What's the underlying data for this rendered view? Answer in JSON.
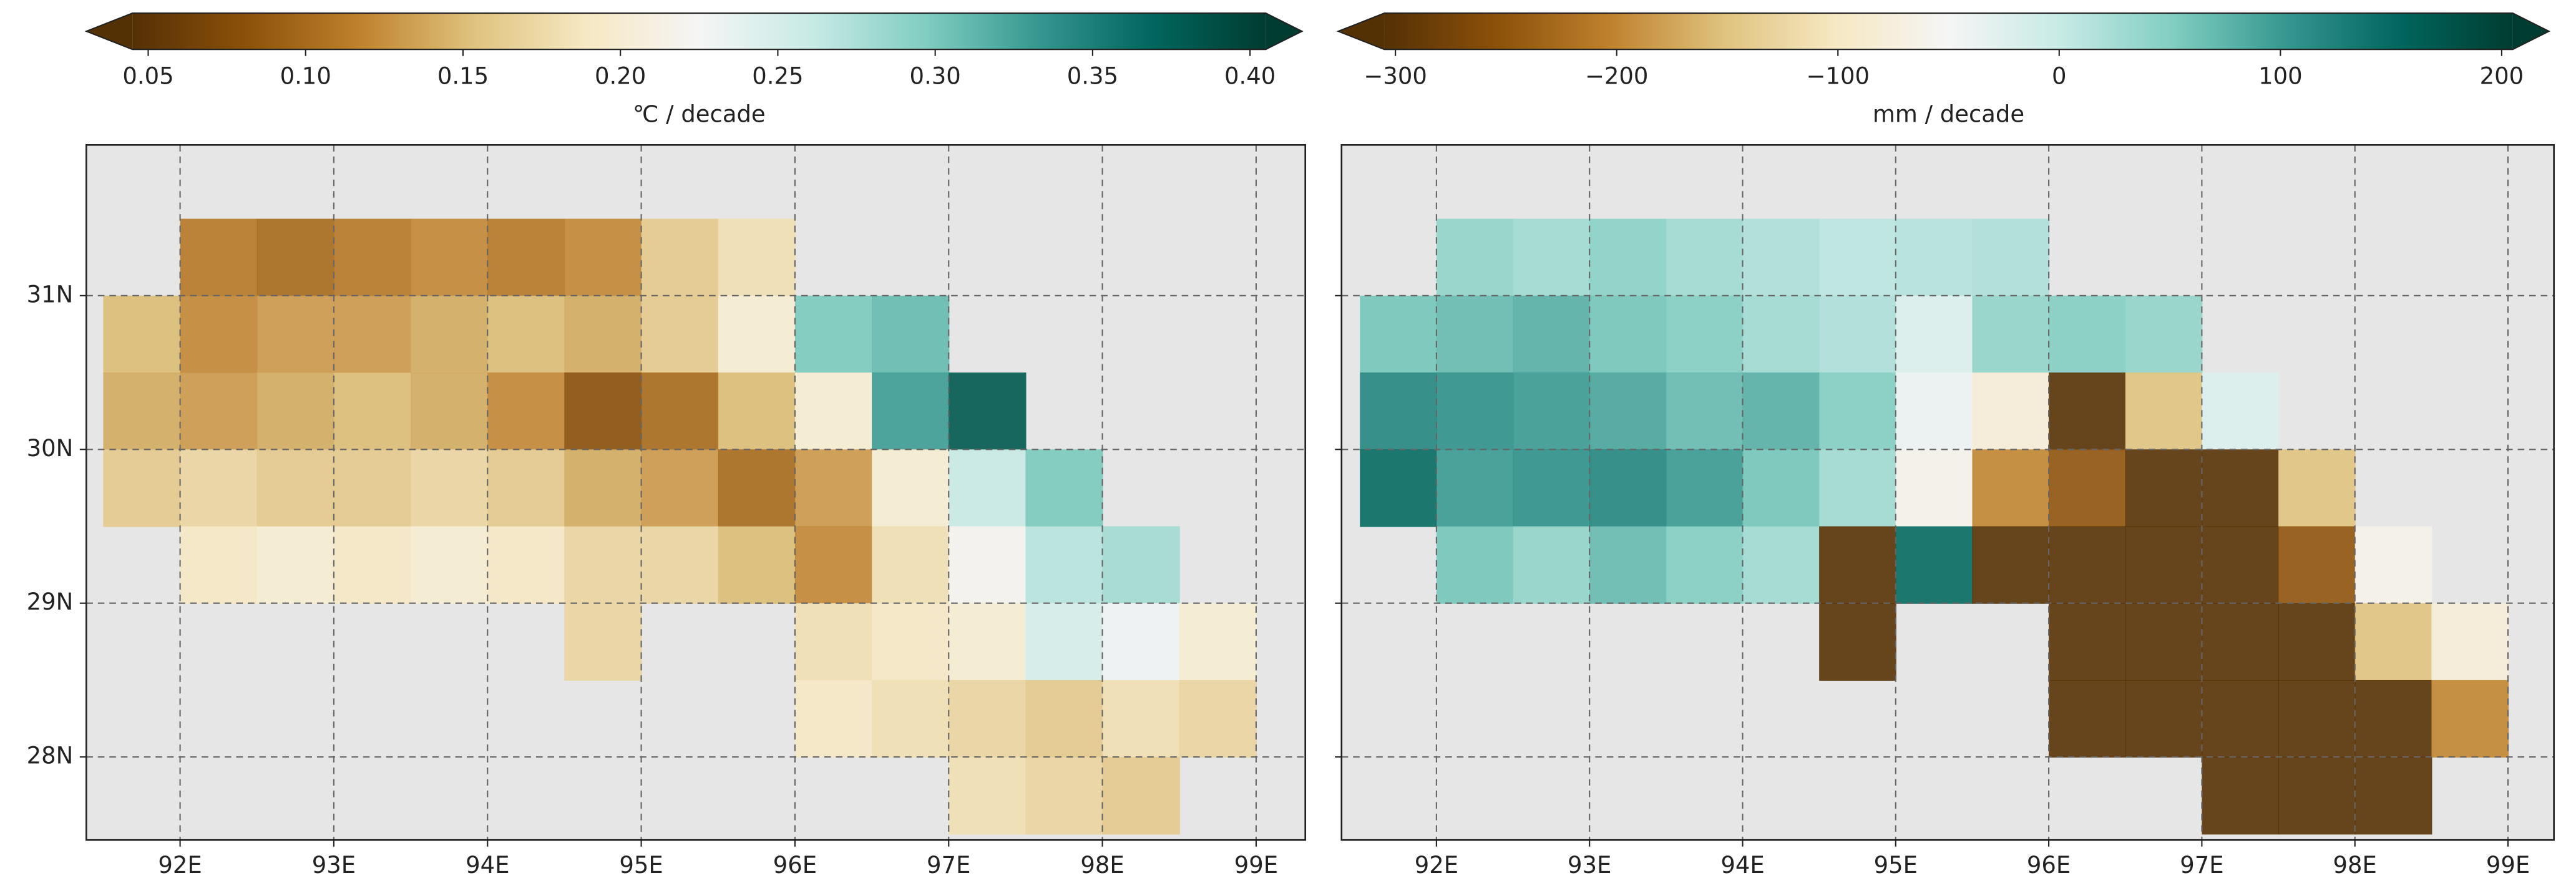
{
  "chart_data": [
    {
      "type": "map",
      "colorbar_label": "℃ / decade",
      "clim": [
        0.045,
        0.405
      ],
      "colorbar_ticks": [
        0.05,
        {
          "value": 0.1,
          "label": "0.10"
        },
        0.15,
        {
          "value": 0.2,
          "label": "0.20"
        },
        0.25,
        {
          "value": 0.3,
          "label": "0.30"
        },
        0.35,
        {
          "value": 0.4,
          "label": "0.40"
        }
      ],
      "colors": [
        "#543005",
        "#8c510a",
        "#bf812d",
        "#dfc27d",
        "#f6e8c3",
        "#f5f5f5",
        "#c7eae5",
        "#80cdc1",
        "#35978f",
        "#01665e",
        "#003c30"
      ],
      "xlim": [
        91.39,
        99.32
      ],
      "ylim": [
        27.46,
        31.98
      ],
      "xticks": [
        {
          "value": 92,
          "label": "92E"
        },
        {
          "value": 93,
          "label": "93E"
        },
        {
          "value": 94,
          "label": "94E"
        },
        {
          "value": 95,
          "label": "95E"
        },
        {
          "value": 96,
          "label": "96E"
        },
        {
          "value": 97,
          "label": "97E"
        },
        {
          "value": 98,
          "label": "98E"
        },
        {
          "value": 99,
          "label": "99E"
        }
      ],
      "yticks": [
        {
          "value": 28,
          "label": "28N"
        },
        {
          "value": 29,
          "label": "29N"
        },
        {
          "value": 30,
          "label": "30N"
        },
        {
          "value": 31,
          "label": "31N"
        }
      ],
      "grid": true,
      "x": [
        91.75,
        92.25,
        92.75,
        93.25,
        93.75,
        94.25,
        94.75,
        95.25,
        95.75,
        96.25,
        96.75,
        97.25,
        97.75,
        98.25,
        98.75
      ],
      "y": [
        31.75,
        31.25,
        30.75,
        30.25,
        29.75,
        29.25,
        28.75,
        28.25,
        27.75
      ],
      "values": [
        [
          null,
          null,
          null,
          null,
          null,
          null,
          null,
          null,
          null,
          null,
          null,
          null,
          null,
          null,
          null
        ],
        [
          null,
          0.11,
          0.1,
          0.11,
          0.12,
          0.11,
          0.12,
          0.16,
          0.18,
          null,
          null,
          null,
          null,
          null,
          null
        ],
        [
          0.15,
          0.12,
          0.13,
          0.13,
          0.14,
          0.15,
          0.14,
          0.16,
          0.2,
          0.3,
          0.31,
          null,
          null,
          null,
          null
        ],
        [
          0.14,
          0.13,
          0.14,
          0.15,
          0.14,
          0.12,
          0.08,
          0.1,
          0.15,
          0.2,
          0.33,
          0.38,
          null,
          null,
          null
        ],
        [
          0.16,
          0.17,
          0.16,
          0.16,
          0.17,
          0.16,
          0.14,
          0.13,
          0.1,
          0.13,
          0.2,
          0.26,
          0.3,
          null,
          null
        ],
        [
          null,
          0.19,
          0.2,
          0.19,
          0.2,
          0.19,
          0.17,
          0.17,
          0.15,
          0.12,
          0.18,
          0.22,
          0.27,
          0.28,
          null
        ],
        [
          null,
          null,
          null,
          null,
          null,
          null,
          0.17,
          null,
          null,
          0.18,
          0.19,
          0.2,
          0.25,
          0.23,
          0.2
        ],
        [
          null,
          null,
          null,
          null,
          null,
          null,
          null,
          null,
          null,
          0.19,
          0.18,
          0.17,
          0.16,
          0.18,
          0.17
        ],
        [
          null,
          null,
          null,
          null,
          null,
          null,
          null,
          null,
          null,
          null,
          null,
          0.18,
          0.17,
          0.16,
          null
        ]
      ]
    },
    {
      "type": "map",
      "colorbar_label": "mm / decade",
      "clim": [
        -305,
        205
      ],
      "colorbar_ticks": [
        {
          "value": -300,
          "label": "−300"
        },
        {
          "value": -200,
          "label": "−200"
        },
        {
          "value": -100,
          "label": "−100"
        },
        0,
        100,
        200
      ],
      "colors": [
        "#543005",
        "#8c510a",
        "#bf812d",
        "#dfc27d",
        "#f6e8c3",
        "#f5f5f5",
        "#c7eae5",
        "#80cdc1",
        "#35978f",
        "#01665e",
        "#003c30"
      ],
      "xlim": [
        91.38,
        99.3
      ],
      "ylim": [
        27.46,
        31.98
      ],
      "xticks": [
        {
          "value": 92,
          "label": "92E"
        },
        {
          "value": 93,
          "label": "93E"
        },
        {
          "value": 94,
          "label": "94E"
        },
        {
          "value": 95,
          "label": "95E"
        },
        {
          "value": 96,
          "label": "96E"
        },
        {
          "value": 97,
          "label": "97E"
        },
        {
          "value": 98,
          "label": "98E"
        },
        {
          "value": 99,
          "label": "99E"
        }
      ],
      "yticks": [
        28,
        29,
        30,
        31
      ],
      "grid": true,
      "x": [
        91.75,
        92.25,
        92.75,
        93.25,
        93.75,
        94.25,
        94.75,
        95.25,
        95.75,
        96.25,
        96.75,
        97.25,
        97.75,
        98.25,
        98.75
      ],
      "y": [
        31.75,
        31.25,
        30.75,
        30.25,
        29.75,
        29.25,
        28.75,
        28.25,
        27.75
      ],
      "values": [
        [
          null,
          null,
          null,
          null,
          null,
          null,
          null,
          null,
          null,
          null,
          null,
          null,
          null,
          null,
          null
        ],
        [
          null,
          40,
          30,
          45,
          30,
          20,
          10,
          15,
          20,
          null,
          null,
          null,
          null,
          null,
          null
        ],
        [
          60,
          70,
          80,
          60,
          50,
          30,
          20,
          -20,
          40,
          50,
          40,
          null,
          null,
          null,
          null
        ],
        [
          120,
          110,
          100,
          90,
          70,
          80,
          50,
          -40,
          -80,
          -300,
          -150,
          -20,
          null,
          null,
          null
        ],
        [
          150,
          100,
          110,
          120,
          100,
          60,
          30,
          -60,
          -200,
          -250,
          -300,
          -300,
          -150,
          null,
          null
        ],
        [
          null,
          60,
          40,
          70,
          50,
          30,
          -300,
          150,
          -300,
          -300,
          -300,
          -300,
          -250,
          -60,
          null
        ],
        [
          null,
          null,
          null,
          null,
          null,
          null,
          -300,
          null,
          null,
          -300,
          -300,
          -300,
          -300,
          -150,
          -80
        ],
        [
          null,
          null,
          null,
          null,
          null,
          null,
          null,
          null,
          null,
          -300,
          -300,
          -300,
          -300,
          -300,
          -200
        ],
        [
          null,
          null,
          null,
          null,
          null,
          null,
          null,
          null,
          null,
          null,
          null,
          -300,
          -300,
          -300,
          null
        ]
      ]
    }
  ]
}
